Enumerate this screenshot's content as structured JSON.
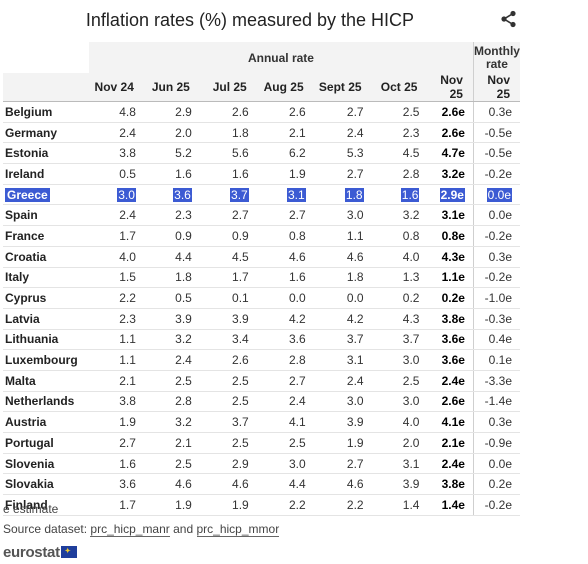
{
  "title": "Inflation rates (%) measured by the HICP",
  "header": {
    "annual_rate": "Annual rate",
    "monthly_rate": "Monthly rate",
    "columns": [
      "Nov 24",
      "Jun 25",
      "Jul 25",
      "Aug 25",
      "Sept 25",
      "Oct 25",
      "Nov 25",
      "Nov 25"
    ]
  },
  "rows": [
    {
      "country": "Belgium",
      "values": [
        "4.8",
        "2.9",
        "2.6",
        "2.6",
        "2.7",
        "2.5",
        "2.6e",
        "0.3e"
      ]
    },
    {
      "country": "Germany",
      "values": [
        "2.4",
        "2.0",
        "1.8",
        "2.1",
        "2.4",
        "2.3",
        "2.6e",
        "-0.5e"
      ]
    },
    {
      "country": "Estonia",
      "values": [
        "3.8",
        "5.2",
        "5.6",
        "6.2",
        "5.3",
        "4.5",
        "4.7e",
        "-0.5e"
      ]
    },
    {
      "country": "Ireland",
      "values": [
        "0.5",
        "1.6",
        "1.6",
        "1.9",
        "2.7",
        "2.8",
        "3.2e",
        "-0.2e"
      ]
    },
    {
      "country": "Greece",
      "values": [
        "3.0",
        "3.6",
        "3.7",
        "3.1",
        "1.8",
        "1.6",
        "2.9e",
        "0.0e"
      ]
    },
    {
      "country": "Spain",
      "values": [
        "2.4",
        "2.3",
        "2.7",
        "2.7",
        "3.0",
        "3.2",
        "3.1e",
        "0.0e"
      ]
    },
    {
      "country": "France",
      "values": [
        "1.7",
        "0.9",
        "0.9",
        "0.8",
        "1.1",
        "0.8",
        "0.8e",
        "-0.2e"
      ]
    },
    {
      "country": "Croatia",
      "values": [
        "4.0",
        "4.4",
        "4.5",
        "4.6",
        "4.6",
        "4.0",
        "4.3e",
        "0.3e"
      ]
    },
    {
      "country": "Italy",
      "values": [
        "1.5",
        "1.8",
        "1.7",
        "1.6",
        "1.8",
        "1.3",
        "1.1e",
        "-0.2e"
      ]
    },
    {
      "country": "Cyprus",
      "values": [
        "2.2",
        "0.5",
        "0.1",
        "0.0",
        "0.0",
        "0.2",
        "0.2e",
        "-1.0e"
      ]
    },
    {
      "country": "Latvia",
      "values": [
        "2.3",
        "3.9",
        "3.9",
        "4.2",
        "4.2",
        "4.3",
        "3.8e",
        "-0.3e"
      ]
    },
    {
      "country": "Lithuania",
      "values": [
        "1.1",
        "3.2",
        "3.4",
        "3.6",
        "3.7",
        "3.7",
        "3.6e",
        "0.4e"
      ]
    },
    {
      "country": "Luxembourg",
      "values": [
        "1.1",
        "2.4",
        "2.6",
        "2.8",
        "3.1",
        "3.0",
        "3.6e",
        "0.1e"
      ]
    },
    {
      "country": "Malta",
      "values": [
        "2.1",
        "2.5",
        "2.5",
        "2.7",
        "2.4",
        "2.5",
        "2.4e",
        "-3.3e"
      ]
    },
    {
      "country": "Netherlands",
      "values": [
        "3.8",
        "2.8",
        "2.5",
        "2.4",
        "3.0",
        "3.0",
        "2.6e",
        "-1.4e"
      ]
    },
    {
      "country": "Austria",
      "values": [
        "1.9",
        "3.2",
        "3.7",
        "4.1",
        "3.9",
        "4.0",
        "4.1e",
        "0.3e"
      ]
    },
    {
      "country": "Portugal",
      "values": [
        "2.7",
        "2.1",
        "2.5",
        "2.5",
        "1.9",
        "2.0",
        "2.1e",
        "-0.9e"
      ]
    },
    {
      "country": "Slovenia",
      "values": [
        "1.6",
        "2.5",
        "2.9",
        "3.0",
        "2.7",
        "3.1",
        "2.4e",
        "0.0e"
      ]
    },
    {
      "country": "Slovakia",
      "values": [
        "3.6",
        "4.6",
        "4.6",
        "4.4",
        "4.6",
        "3.9",
        "3.8e",
        "0.2e"
      ]
    },
    {
      "country": "Finland",
      "values": [
        "1.7",
        "1.9",
        "1.9",
        "2.2",
        "2.2",
        "1.4",
        "1.4e",
        "-0.2e"
      ]
    }
  ],
  "footer": {
    "note": "e estimate",
    "source_prefix": "Source dataset:",
    "source_link1": "prc_hicp_manr",
    "source_and": "and",
    "source_link2": "prc_hicp_mmor",
    "logo_text": "eurostat"
  },
  "colors": {
    "highlight": "#3c5bd3",
    "header_bg": "#f3f3f3",
    "logo_flag": "#1f3e9c"
  },
  "icons": {
    "share": "share-icon",
    "flag": "eu-flag-icon"
  }
}
